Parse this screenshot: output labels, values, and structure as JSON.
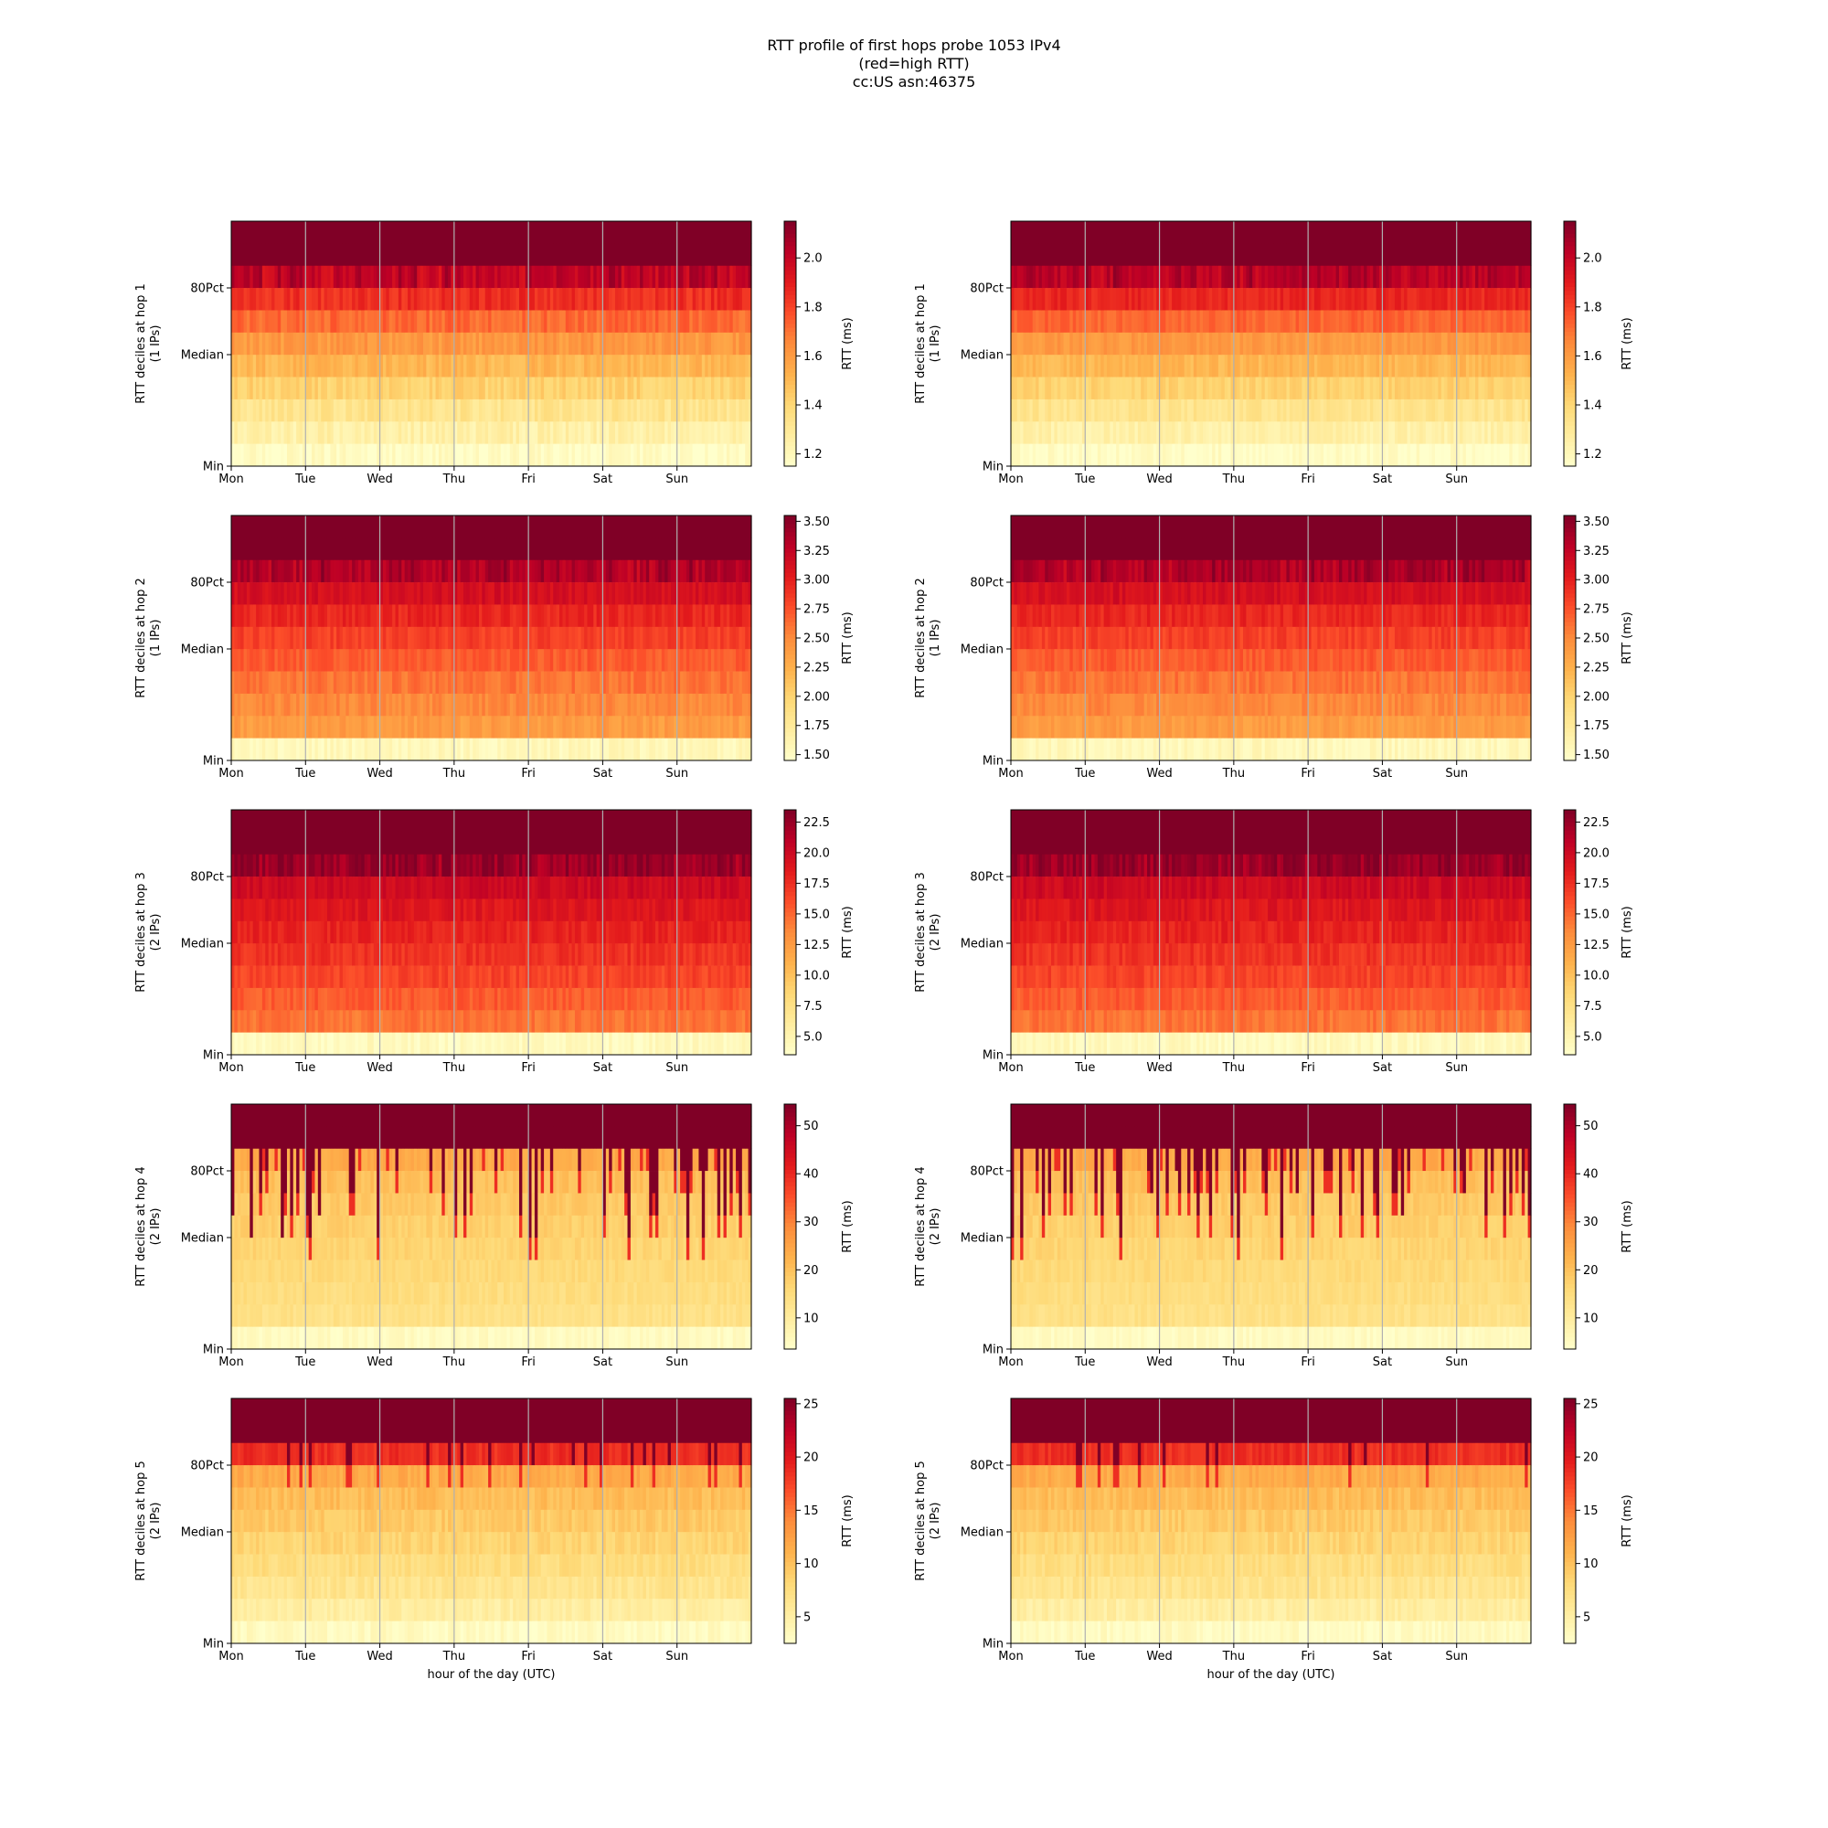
{
  "figure": {
    "title_lines": [
      "RTT profile of first hops probe 1053 IPv4",
      "(red=high RTT)",
      "cc:US asn:46375"
    ]
  },
  "chart_data": [
    {
      "type": "heatmap",
      "hop": 1,
      "column": 1,
      "ylabel": "RTT deciles at hop 1",
      "ylabel_sub": "(1 IPs)",
      "xlabel": "",
      "x_ticks": [
        "Mon",
        "Tue",
        "Wed",
        "Thu",
        "Fri",
        "Sat",
        "Sun"
      ],
      "y_ticks": [
        "Min",
        "Median",
        "80Pct"
      ],
      "colorbar": {
        "label": "RTT (ms)",
        "range": [
          1.15,
          2.15
        ],
        "ticks": [
          "1.2",
          "1.4",
          "1.6",
          "1.8",
          "2.0"
        ],
        "tick_values": [
          1.2,
          1.4,
          1.6,
          1.8,
          2.0
        ]
      },
      "pattern": "bands",
      "decile_levels": [
        0.02,
        0.1,
        0.18,
        0.27,
        0.36,
        0.46,
        0.57,
        0.7,
        0.86,
        1.0
      ],
      "noise": 0.05,
      "spike": {
        "prob": 0,
        "depth": 0
      },
      "colormap": "YlOrRd"
    },
    {
      "type": "heatmap",
      "hop": 1,
      "column": 2,
      "ylabel": "RTT deciles at hop 1",
      "ylabel_sub": "(1 IPs)",
      "xlabel": "",
      "x_ticks": [
        "Mon",
        "Tue",
        "Wed",
        "Thu",
        "Fri",
        "Sat",
        "Sun"
      ],
      "y_ticks": [
        "Min",
        "Median",
        "80Pct"
      ],
      "colorbar": {
        "label": "RTT (ms)",
        "range": [
          1.15,
          2.15
        ],
        "ticks": [
          "1.2",
          "1.4",
          "1.6",
          "1.8",
          "2.0"
        ],
        "tick_values": [
          1.2,
          1.4,
          1.6,
          1.8,
          2.0
        ]
      },
      "pattern": "bands",
      "decile_levels": [
        0.02,
        0.1,
        0.18,
        0.27,
        0.36,
        0.46,
        0.58,
        0.72,
        0.88,
        1.0
      ],
      "noise": 0.04,
      "spike": {
        "prob": 0,
        "depth": 0
      },
      "colormap": "YlOrRd"
    },
    {
      "type": "heatmap",
      "hop": 2,
      "column": 1,
      "ylabel": "RTT deciles at hop 2",
      "ylabel_sub": "(1 IPs)",
      "xlabel": "",
      "x_ticks": [
        "Mon",
        "Tue",
        "Wed",
        "Thu",
        "Fri",
        "Sat",
        "Sun"
      ],
      "y_ticks": [
        "Min",
        "Median",
        "80Pct"
      ],
      "colorbar": {
        "label": "RTT (ms)",
        "range": [
          1.45,
          3.55
        ],
        "ticks": [
          "1.50",
          "1.75",
          "2.00",
          "2.25",
          "2.50",
          "2.75",
          "3.00",
          "3.25",
          "3.50"
        ],
        "tick_values": [
          1.5,
          1.75,
          2.0,
          2.25,
          2.5,
          2.75,
          3.0,
          3.25,
          3.5
        ]
      },
      "pattern": "bands",
      "decile_levels": [
        0.05,
        0.45,
        0.5,
        0.55,
        0.6,
        0.66,
        0.72,
        0.8,
        0.9,
        1.0
      ],
      "noise": 0.04,
      "spike": {
        "prob": 0,
        "depth": 0
      },
      "colormap": "YlOrRd"
    },
    {
      "type": "heatmap",
      "hop": 2,
      "column": 2,
      "ylabel": "RTT deciles at hop 2",
      "ylabel_sub": "(1 IPs)",
      "xlabel": "",
      "x_ticks": [
        "Mon",
        "Tue",
        "Wed",
        "Thu",
        "Fri",
        "Sat",
        "Sun"
      ],
      "y_ticks": [
        "Min",
        "Median",
        "80Pct"
      ],
      "colorbar": {
        "label": "RTT (ms)",
        "range": [
          1.45,
          3.55
        ],
        "ticks": [
          "1.50",
          "1.75",
          "2.00",
          "2.25",
          "2.50",
          "2.75",
          "3.00",
          "3.25",
          "3.50"
        ],
        "tick_values": [
          1.5,
          1.75,
          2.0,
          2.25,
          2.5,
          2.75,
          3.0,
          3.25,
          3.5
        ]
      },
      "pattern": "bands",
      "decile_levels": [
        0.05,
        0.45,
        0.5,
        0.55,
        0.6,
        0.66,
        0.72,
        0.8,
        0.9,
        1.0
      ],
      "noise": 0.04,
      "spike": {
        "prob": 0,
        "depth": 0
      },
      "colormap": "YlOrRd"
    },
    {
      "type": "heatmap",
      "hop": 3,
      "column": 1,
      "ylabel": "RTT deciles at hop 3",
      "ylabel_sub": "(2 IPs)",
      "xlabel": "",
      "x_ticks": [
        "Mon",
        "Tue",
        "Wed",
        "Thu",
        "Fri",
        "Sat",
        "Sun"
      ],
      "y_ticks": [
        "Min",
        "Median",
        "80Pct"
      ],
      "colorbar": {
        "label": "RTT (ms)",
        "range": [
          3.5,
          23.5
        ],
        "ticks": [
          "5.0",
          "7.5",
          "10.0",
          "12.5",
          "15.0",
          "17.5",
          "20.0",
          "22.5"
        ],
        "tick_values": [
          5,
          7.5,
          10,
          12.5,
          15,
          17.5,
          20,
          22.5
        ]
      },
      "pattern": "bands",
      "decile_levels": [
        0.04,
        0.55,
        0.6,
        0.65,
        0.69,
        0.73,
        0.77,
        0.82,
        0.95,
        1.0
      ],
      "noise": 0.04,
      "spike": {
        "prob": 0,
        "depth": 0
      },
      "colormap": "YlOrRd"
    },
    {
      "type": "heatmap",
      "hop": 3,
      "column": 2,
      "ylabel": "RTT deciles at hop 3",
      "ylabel_sub": "(2 IPs)",
      "xlabel": "",
      "x_ticks": [
        "Mon",
        "Tue",
        "Wed",
        "Thu",
        "Fri",
        "Sat",
        "Sun"
      ],
      "y_ticks": [
        "Min",
        "Median",
        "80Pct"
      ],
      "colorbar": {
        "label": "RTT (ms)",
        "range": [
          3.5,
          23.5
        ],
        "ticks": [
          "5.0",
          "7.5",
          "10.0",
          "12.5",
          "15.0",
          "17.5",
          "20.0",
          "22.5"
        ],
        "tick_values": [
          5,
          7.5,
          10,
          12.5,
          15,
          17.5,
          20,
          22.5
        ]
      },
      "pattern": "bands",
      "decile_levels": [
        0.04,
        0.55,
        0.6,
        0.65,
        0.69,
        0.73,
        0.77,
        0.82,
        0.95,
        1.0
      ],
      "noise": 0.04,
      "spike": {
        "prob": 0,
        "depth": 0
      },
      "colormap": "YlOrRd"
    },
    {
      "type": "heatmap",
      "hop": 4,
      "column": 1,
      "ylabel": "RTT deciles at hop 4",
      "ylabel_sub": "(2 IPs)",
      "xlabel": "",
      "x_ticks": [
        "Mon",
        "Tue",
        "Wed",
        "Thu",
        "Fri",
        "Sat",
        "Sun"
      ],
      "y_ticks": [
        "Min",
        "Median",
        "80Pct"
      ],
      "colorbar": {
        "label": "RTT (ms)",
        "range": [
          3.5,
          54.5
        ],
        "ticks": [
          "10",
          "20",
          "30",
          "40",
          "50"
        ],
        "tick_values": [
          10,
          20,
          30,
          40,
          50
        ]
      },
      "pattern": "spiky",
      "decile_levels": [
        0.03,
        0.2,
        0.22,
        0.24,
        0.26,
        0.28,
        0.3,
        0.33,
        0.4,
        1.0
      ],
      "noise": 0.03,
      "spike": {
        "prob": 0.35,
        "depth": 0.5
      },
      "colormap": "YlOrRd"
    },
    {
      "type": "heatmap",
      "hop": 4,
      "column": 2,
      "ylabel": "RTT deciles at hop 4",
      "ylabel_sub": "(2 IPs)",
      "xlabel": "",
      "x_ticks": [
        "Mon",
        "Tue",
        "Wed",
        "Thu",
        "Fri",
        "Sat",
        "Sun"
      ],
      "y_ticks": [
        "Min",
        "Median",
        "80Pct"
      ],
      "colorbar": {
        "label": "RTT (ms)",
        "range": [
          3.5,
          54.5
        ],
        "ticks": [
          "10",
          "20",
          "30",
          "40",
          "50"
        ],
        "tick_values": [
          10,
          20,
          30,
          40,
          50
        ]
      },
      "pattern": "spiky",
      "decile_levels": [
        0.03,
        0.2,
        0.22,
        0.24,
        0.26,
        0.28,
        0.3,
        0.33,
        0.4,
        1.0
      ],
      "noise": 0.03,
      "spike": {
        "prob": 0.35,
        "depth": 0.5
      },
      "colormap": "YlOrRd"
    },
    {
      "type": "heatmap",
      "hop": 5,
      "column": 1,
      "ylabel": "RTT deciles at hop 5",
      "ylabel_sub": "(2 IPs)",
      "xlabel": "hour of the day (UTC)",
      "x_ticks": [
        "Mon",
        "Tue",
        "Wed",
        "Thu",
        "Fri",
        "Sat",
        "Sun"
      ],
      "y_ticks": [
        "Min",
        "Median",
        "80Pct"
      ],
      "colorbar": {
        "label": "RTT (ms)",
        "range": [
          2.5,
          25.5
        ],
        "ticks": [
          "5",
          "10",
          "15",
          "20",
          "25"
        ],
        "tick_values": [
          5,
          10,
          15,
          20,
          25
        ]
      },
      "pattern": "spiky",
      "decile_levels": [
        0.03,
        0.12,
        0.18,
        0.22,
        0.26,
        0.3,
        0.34,
        0.4,
        0.7,
        1.0
      ],
      "noise": 0.04,
      "spike": {
        "prob": 0.25,
        "depth": 0.2
      },
      "colormap": "YlOrRd"
    },
    {
      "type": "heatmap",
      "hop": 5,
      "column": 2,
      "ylabel": "RTT deciles at hop 5",
      "ylabel_sub": "(2 IPs)",
      "xlabel": "hour of the day (UTC)",
      "x_ticks": [
        "Mon",
        "Tue",
        "Wed",
        "Thu",
        "Fri",
        "Sat",
        "Sun"
      ],
      "y_ticks": [
        "Min",
        "Median",
        "80Pct"
      ],
      "colorbar": {
        "label": "RTT (ms)",
        "range": [
          2.5,
          25.5
        ],
        "ticks": [
          "5",
          "10",
          "15",
          "20",
          "25"
        ],
        "tick_values": [
          5,
          10,
          15,
          20,
          25
        ]
      },
      "pattern": "spiky",
      "decile_levels": [
        0.03,
        0.12,
        0.18,
        0.22,
        0.26,
        0.3,
        0.34,
        0.4,
        0.7,
        1.0
      ],
      "noise": 0.04,
      "spike": {
        "prob": 0.25,
        "depth": 0.2
      },
      "colormap": "YlOrRd"
    }
  ]
}
